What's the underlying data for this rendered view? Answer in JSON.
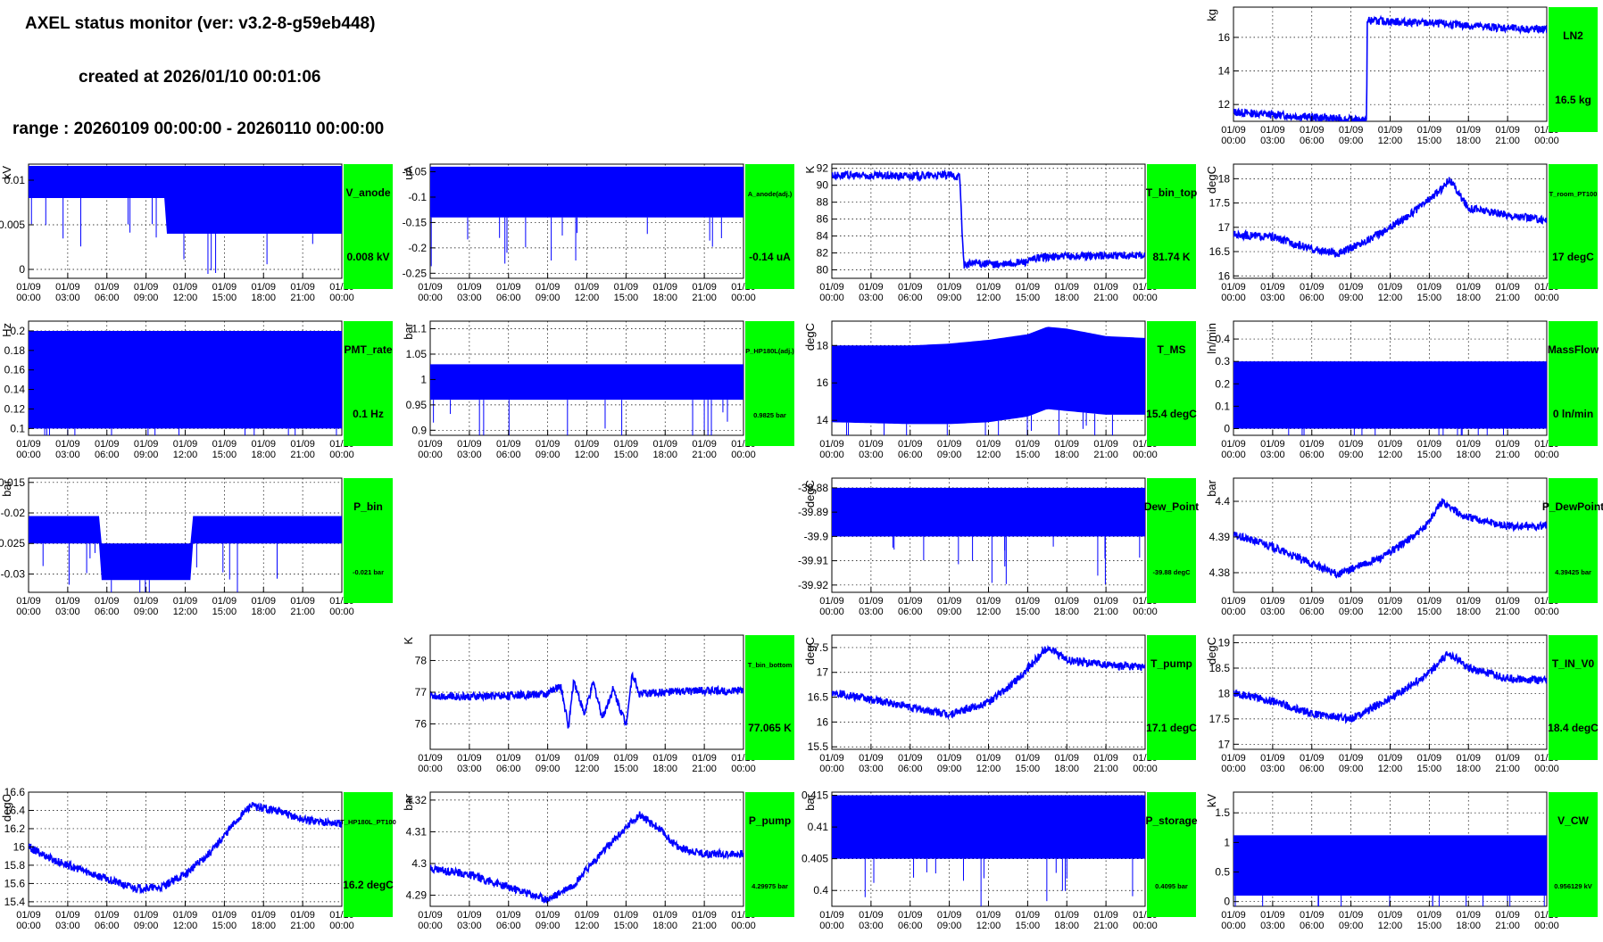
{
  "header": {
    "title": "AXEL status monitor (ver: v3.2-8-g59eb448)",
    "created": "created at 2026/01/10 00:01:06",
    "range": "range : 20260109 00:00:00 - 20260110 00:00:00"
  },
  "colors": {
    "trace": "#0000ff",
    "label_bg": "#00ff00",
    "grid": "#000000"
  },
  "x_tick_labels": [
    [
      "01/09",
      "00:00"
    ],
    [
      "01/09",
      "03:00"
    ],
    [
      "01/09",
      "06:00"
    ],
    [
      "01/09",
      "09:00"
    ],
    [
      "01/09",
      "12:00"
    ],
    [
      "01/09",
      "15:00"
    ],
    [
      "01/09",
      "18:00"
    ],
    [
      "01/09",
      "21:00"
    ],
    [
      "01/10",
      "00:00"
    ]
  ],
  "chart_data": [
    {
      "id": "LN2",
      "type": "line",
      "label": "LN2",
      "value_text": "16.5 kg",
      "unit": "kg",
      "ylim": [
        11,
        17.8
      ],
      "y_ticks": [
        "12",
        "14",
        "16"
      ],
      "y_tick_vals": [
        12,
        14,
        16
      ],
      "x_hours": [
        0,
        3,
        6,
        9,
        10.2,
        10.25,
        12,
        15,
        18,
        21,
        24
      ],
      "y": [
        11.55,
        11.4,
        11.25,
        11.1,
        11.05,
        17.0,
        16.95,
        16.85,
        16.7,
        16.55,
        16.45
      ]
    },
    {
      "id": "V_anode",
      "type": "line",
      "label": "V_anode",
      "value_text": "0.008 kV",
      "unit": "kV",
      "ylim": [
        -0.001,
        0.0118
      ],
      "y_ticks": [
        "0",
        "0.005",
        "0.01"
      ],
      "y_tick_vals": [
        0,
        0.005,
        0.01
      ],
      "x_hours": [
        0,
        10.5,
        10.55,
        24
      ],
      "y_lo": [
        0.008,
        0.008,
        0.004,
        0.004
      ],
      "y_hi": [
        0.0116,
        0.0116,
        0.0116,
        0.0116
      ]
    },
    {
      "id": "A_anode",
      "type": "line",
      "label": "A_anode(adj.)",
      "value_text": "-0.14 uA",
      "unit": "uA",
      "ylim": [
        -0.26,
        -0.035
      ],
      "y_ticks": [
        "-0.25",
        "-0.2",
        "-0.15",
        "-0.1",
        "-0.05"
      ],
      "y_tick_vals": [
        -0.25,
        -0.2,
        -0.15,
        -0.1,
        -0.05
      ],
      "x_hours": [
        0,
        24
      ],
      "y_lo": [
        -0.14,
        -0.14
      ],
      "y_hi": [
        -0.04,
        -0.04
      ]
    },
    {
      "id": "T_bin_top",
      "type": "line",
      "label": "T_bin_top",
      "value_text": "81.74 K",
      "unit": "K",
      "ylim": [
        79,
        92.5
      ],
      "y_ticks": [
        "80",
        "82",
        "84",
        "86",
        "88",
        "90",
        "92"
      ],
      "y_tick_vals": [
        80,
        82,
        84,
        86,
        88,
        90,
        92
      ],
      "x_hours": [
        0,
        3,
        6,
        9,
        9.8,
        10.1,
        11,
        13,
        15,
        16,
        18,
        21,
        24
      ],
      "y": [
        91.2,
        91.1,
        91.1,
        91.2,
        91.0,
        80.6,
        80.8,
        80.6,
        81.0,
        81.5,
        81.6,
        81.7,
        81.7
      ]
    },
    {
      "id": "T_room_PT100",
      "type": "line",
      "label": "T_room_PT100",
      "value_text": "17 degC",
      "unit": "degC",
      "ylim": [
        15.95,
        18.3
      ],
      "y_ticks": [
        "16",
        "16.5",
        "17",
        "17.5",
        "18"
      ],
      "y_tick_vals": [
        16,
        16.5,
        17,
        17.5,
        18
      ],
      "x_hours": [
        0,
        3,
        6,
        8,
        10,
        12,
        14,
        16,
        16.5,
        18,
        21,
        24
      ],
      "y": [
        16.85,
        16.8,
        16.55,
        16.45,
        16.7,
        17.0,
        17.35,
        17.8,
        18.0,
        17.4,
        17.25,
        17.15
      ]
    },
    {
      "id": "PMT_rate",
      "type": "line",
      "label": "PMT_rate",
      "value_text": "0.1 Hz",
      "unit": "Hz",
      "ylim": [
        0.093,
        0.21
      ],
      "y_ticks": [
        "0.1",
        "0.12",
        "0.14",
        "0.16",
        "0.18",
        "0.2"
      ],
      "y_tick_vals": [
        0.1,
        0.12,
        0.14,
        0.16,
        0.18,
        0.2
      ],
      "x_hours": [
        0,
        24
      ],
      "y_lo": [
        0.1,
        0.1
      ],
      "y_hi": [
        0.2,
        0.2
      ]
    },
    {
      "id": "P_HP180L",
      "type": "line",
      "label": "P_HP180L(adj.)",
      "value_text": "0.9825 bar",
      "unit": "bar",
      "ylim": [
        0.89,
        1.115
      ],
      "y_ticks": [
        "0.9",
        "0.95",
        "1",
        "1.05",
        "1.1"
      ],
      "y_tick_vals": [
        0.9,
        0.95,
        1,
        1.05,
        1.1
      ],
      "x_hours": [
        0,
        24
      ],
      "y_lo": [
        0.96,
        0.96
      ],
      "y_hi": [
        1.03,
        1.03
      ]
    },
    {
      "id": "T_MS",
      "type": "line",
      "label": "T_MS",
      "value_text": "15.4 degC",
      "unit": "degC",
      "ylim": [
        13.2,
        19.3
      ],
      "y_ticks": [
        "14",
        "16",
        "18"
      ],
      "y_tick_vals": [
        14,
        16,
        18
      ],
      "x_hours": [
        0,
        6,
        9,
        12,
        15,
        16.5,
        18,
        21,
        24
      ],
      "y_lo": [
        13.9,
        13.8,
        13.8,
        13.9,
        14.2,
        14.6,
        14.5,
        14.3,
        14.3
      ],
      "y_hi": [
        18.0,
        18.0,
        18.1,
        18.3,
        18.6,
        19.0,
        18.9,
        18.5,
        18.4
      ]
    },
    {
      "id": "MassFlow",
      "type": "line",
      "label": "MassFlow",
      "value_text": "0 ln/min",
      "unit": "ln/min",
      "ylim": [
        -0.03,
        0.48
      ],
      "y_ticks": [
        "0",
        "0.1",
        "0.2",
        "0.3",
        "0.4"
      ],
      "y_tick_vals": [
        0,
        0.1,
        0.2,
        0.3,
        0.4
      ],
      "x_hours": [
        0,
        24
      ],
      "y_lo": [
        0,
        0
      ],
      "y_hi": [
        0.3,
        0.3
      ]
    },
    {
      "id": "P_bin",
      "type": "line",
      "label": "P_bin",
      "value_text": "-0.021 bar",
      "unit": "bar",
      "ylim": [
        -0.033,
        -0.0143
      ],
      "y_ticks": [
        "-0.03",
        "-0.025",
        "-0.02",
        "-0.015"
      ],
      "y_tick_vals": [
        -0.03,
        -0.025,
        -0.02,
        -0.015
      ],
      "x_hours": [
        0,
        5.5,
        5.6,
        12.5,
        12.6,
        24
      ],
      "y_lo": [
        -0.025,
        -0.025,
        -0.031,
        -0.031,
        -0.025,
        -0.025
      ],
      "y_hi": [
        -0.0205,
        -0.0205,
        -0.025,
        -0.025,
        -0.0205,
        -0.0205
      ]
    },
    {
      "id": "Dew_Point",
      "type": "line",
      "label": "Dew_Point",
      "value_text": "-39.88 degC",
      "unit": "degC",
      "ylim": [
        -39.923,
        -39.876
      ],
      "y_ticks": [
        "-39.92",
        "-39.91",
        "-39.9",
        "-39.89",
        "-39.88"
      ],
      "y_tick_vals": [
        -39.92,
        -39.91,
        -39.9,
        -39.89,
        -39.88
      ],
      "x_hours": [
        0,
        24
      ],
      "y_lo": [
        -39.9,
        -39.9
      ],
      "y_hi": [
        -39.88,
        -39.88
      ]
    },
    {
      "id": "P_DewPoint",
      "type": "line",
      "label": "P_DewPoint",
      "value_text": "4.39425 bar",
      "unit": "bar",
      "ylim": [
        4.3745,
        4.4065
      ],
      "y_ticks": [
        "4.38",
        "4.39",
        "4.4"
      ],
      "y_tick_vals": [
        4.38,
        4.39,
        4.4
      ],
      "x_hours": [
        0,
        2.5,
        5,
        8,
        11.5,
        14.5,
        16,
        17.5,
        21,
        24
      ],
      "y": [
        4.3905,
        4.388,
        4.384,
        4.3795,
        4.3845,
        4.392,
        4.4,
        4.396,
        4.393,
        4.393
      ]
    },
    {
      "id": "T_bin_bottom",
      "type": "line",
      "label": "T_bin_bottom",
      "value_text": "77.065 K",
      "unit": "K",
      "ylim": [
        75.2,
        78.8
      ],
      "y_ticks": [
        "76",
        "77",
        "78"
      ],
      "y_tick_vals": [
        76,
        77,
        78
      ],
      "x_hours": [
        0,
        3,
        6,
        9,
        10,
        10.6,
        11,
        11.8,
        12.5,
        13.2,
        14,
        15,
        15.5,
        16,
        18,
        21,
        24
      ],
      "y": [
        76.9,
        76.85,
        76.9,
        76.95,
        77.2,
        75.9,
        77.4,
        76.3,
        77.3,
        76.2,
        77.1,
        76.0,
        77.6,
        76.95,
        77.0,
        77.05,
        77.05
      ]
    },
    {
      "id": "T_pump",
      "type": "line",
      "label": "T_pump",
      "value_text": "17.1 degC",
      "unit": "degC",
      "ylim": [
        15.45,
        17.75
      ],
      "y_ticks": [
        "15.5",
        "16",
        "16.5",
        "17",
        "17.5"
      ],
      "y_tick_vals": [
        15.5,
        16,
        16.5,
        17,
        17.5
      ],
      "x_hours": [
        0,
        3,
        6,
        9,
        12,
        14,
        16.5,
        18,
        21,
        24
      ],
      "y": [
        16.6,
        16.45,
        16.3,
        16.15,
        16.4,
        16.8,
        17.5,
        17.25,
        17.15,
        17.1
      ]
    },
    {
      "id": "T_IN_V0",
      "type": "line",
      "label": "T_IN_V0",
      "value_text": "18.4 degC",
      "unit": "degC",
      "ylim": [
        16.9,
        19.15
      ],
      "y_ticks": [
        "17",
        "17.5",
        "18",
        "18.5",
        "19"
      ],
      "y_tick_vals": [
        17,
        17.5,
        18,
        18.5,
        19
      ],
      "x_hours": [
        0,
        3,
        6,
        9,
        12,
        15,
        16.5,
        18,
        21,
        24
      ],
      "y": [
        18.0,
        17.85,
        17.6,
        17.5,
        17.9,
        18.4,
        18.8,
        18.5,
        18.3,
        18.25
      ]
    },
    {
      "id": "T_HP180L_PT100",
      "type": "line",
      "label": "T_HP180L_PT100",
      "value_text": "16.2 degC",
      "unit": "degC",
      "ylim": [
        15.35,
        16.6
      ],
      "y_ticks": [
        "15.4",
        "15.6",
        "15.8",
        "16",
        "16.2",
        "16.4",
        "16.6"
      ],
      "y_tick_vals": [
        15.4,
        15.6,
        15.8,
        16,
        16.2,
        16.4,
        16.6
      ],
      "x_hours": [
        0,
        2,
        4,
        6,
        8,
        10,
        12,
        14,
        16,
        17,
        19,
        21,
        24
      ],
      "y": [
        16.0,
        15.85,
        15.75,
        15.65,
        15.55,
        15.55,
        15.7,
        15.95,
        16.3,
        16.45,
        16.4,
        16.3,
        16.25
      ]
    },
    {
      "id": "P_pump",
      "type": "line",
      "label": "P_pump",
      "value_text": "4.29975 bar",
      "unit": "bar",
      "ylim": [
        4.2865,
        4.3225
      ],
      "y_ticks": [
        "4.29",
        "4.3",
        "4.31",
        "4.32"
      ],
      "y_tick_vals": [
        4.29,
        4.3,
        4.31,
        4.32
      ],
      "x_hours": [
        0,
        3,
        6,
        9,
        11,
        12.5,
        14,
        16,
        17.5,
        19,
        21,
        24
      ],
      "y": [
        4.2985,
        4.2965,
        4.2925,
        4.2885,
        4.2935,
        4.3005,
        4.307,
        4.3155,
        4.311,
        4.305,
        4.303,
        4.303
      ]
    },
    {
      "id": "P_storage",
      "type": "line",
      "label": "P_storage",
      "value_text": "0.4095 bar",
      "unit": "bar",
      "ylim": [
        0.3975,
        0.4155
      ],
      "y_ticks": [
        "0.4",
        "0.405",
        "0.41",
        "0.415"
      ],
      "y_tick_vals": [
        0.4,
        0.405,
        0.41,
        0.415
      ],
      "x_hours": [
        0,
        24
      ],
      "y_lo": [
        0.405,
        0.405
      ],
      "y_hi": [
        0.415,
        0.415
      ]
    },
    {
      "id": "V_CW",
      "type": "line",
      "label": "V_CW",
      "value_text": "0.956129 kV",
      "unit": "kV",
      "ylim": [
        -0.08,
        1.85
      ],
      "y_ticks": [
        "0",
        "0.5",
        "1",
        "1.5"
      ],
      "y_tick_vals": [
        0,
        0.5,
        1,
        1.5
      ],
      "x_hours": [
        0,
        24
      ],
      "y_lo": [
        0.1,
        0.1
      ],
      "y_hi": [
        1.12,
        1.12
      ]
    }
  ]
}
